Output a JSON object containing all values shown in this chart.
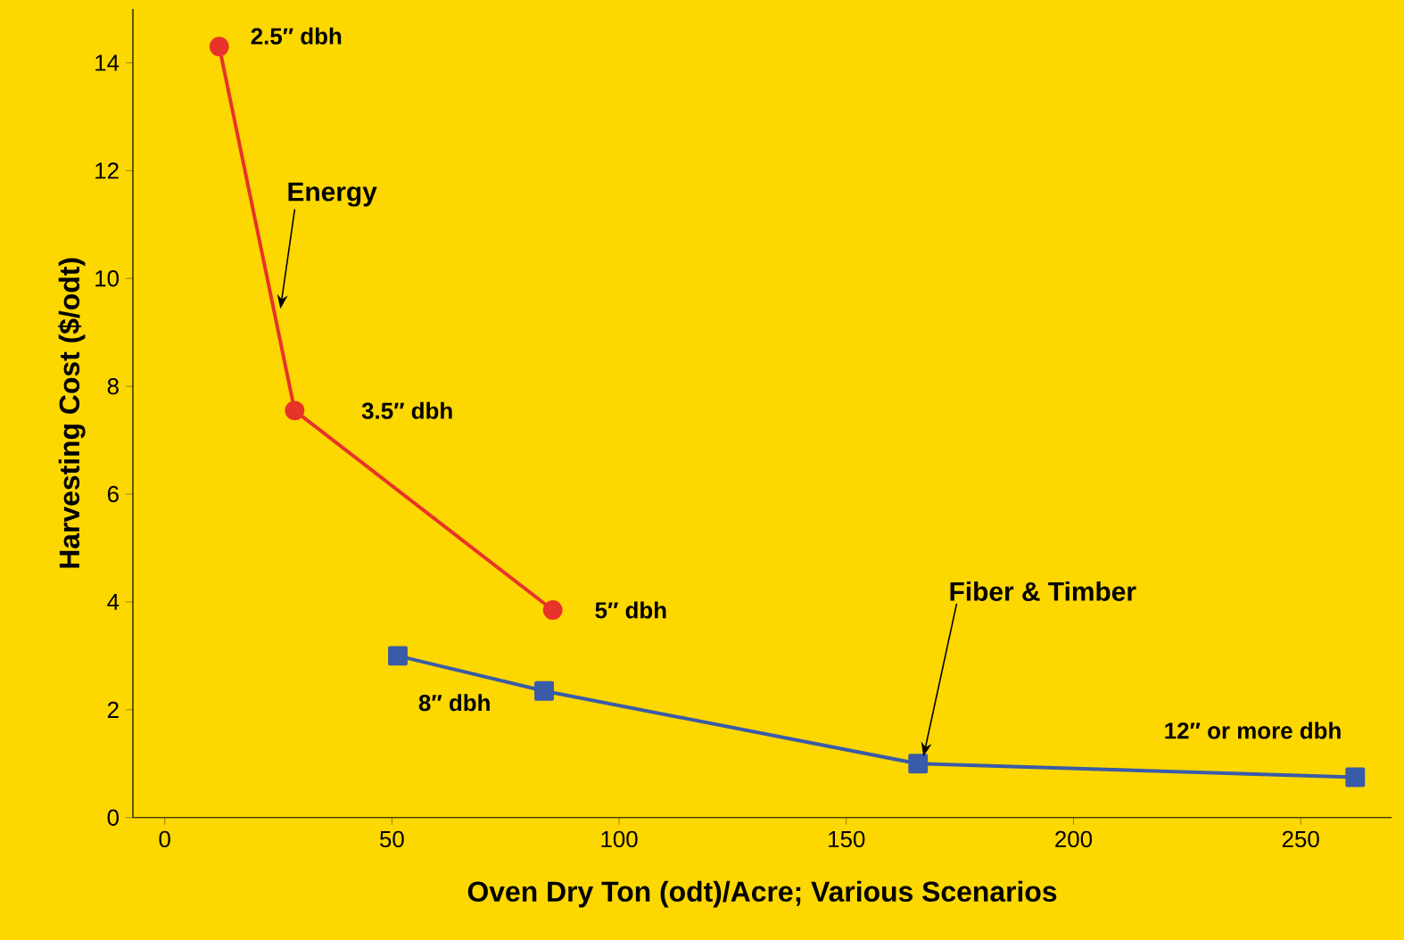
{
  "chart_data": {
    "type": "line",
    "xlabel": "Oven Dry Ton (odt)/Acre; Various Scenarios",
    "ylabel": "Harvesting Cost ($/odt)",
    "xlim": [
      -7,
      270
    ],
    "ylim": [
      0,
      15
    ],
    "xticks": [
      0,
      50,
      100,
      150,
      200,
      250
    ],
    "yticks": [
      0,
      2,
      4,
      6,
      8,
      10,
      12,
      14
    ],
    "grid": false,
    "legend": false,
    "series": [
      {
        "name": "Energy",
        "color": "#e8332a",
        "marker": "circle",
        "x": [
          12,
          28.6,
          85.4
        ],
        "values": [
          14.3,
          7.55,
          3.85
        ]
      },
      {
        "name": "Fiber & Timber",
        "color": "#3a5ba8",
        "marker": "square",
        "x": [
          51.3,
          83.5,
          165.8,
          262
        ],
        "values": [
          3.0,
          2.35,
          1.0,
          0.75
        ]
      }
    ],
    "annotations": [
      {
        "text": "2.5″ dbh",
        "x": 12,
        "y": 14.3
      },
      {
        "text": "3.5″ dbh",
        "x": 28.6,
        "y": 7.55
      },
      {
        "text": "5″ dbh",
        "x": 85.4,
        "y": 3.85
      },
      {
        "text": "8″ dbh",
        "x": 51.3,
        "y": 3.0
      },
      {
        "text": "12″ or more dbh",
        "x": 262,
        "y": 0.75
      }
    ]
  }
}
